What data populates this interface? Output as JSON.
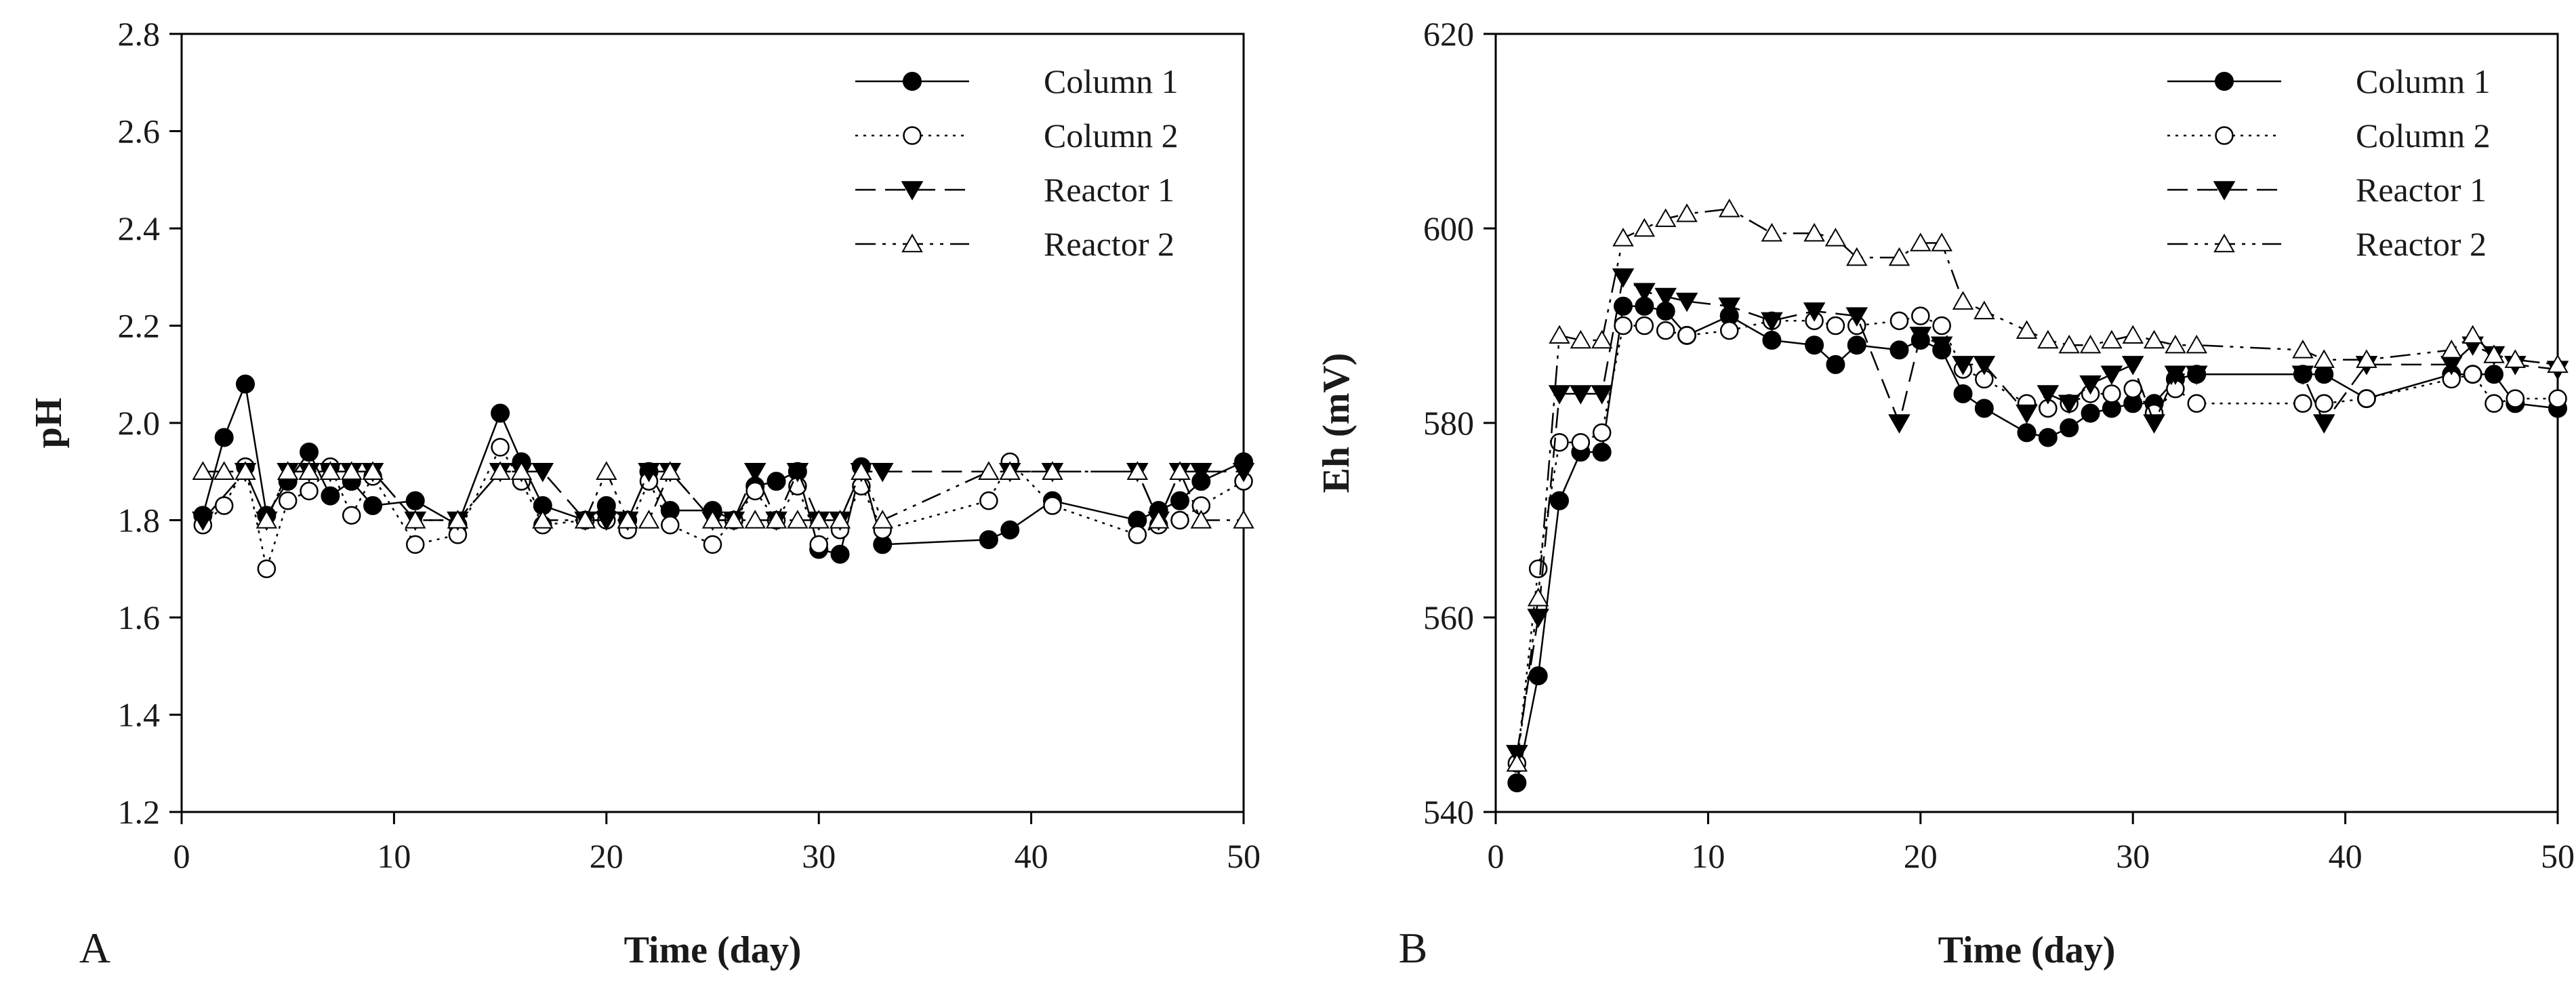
{
  "chart_data": [
    {
      "type": "line",
      "panel_label": "A",
      "xlabel": "Time (day)",
      "ylabel": "pH",
      "xlim": [
        0,
        50
      ],
      "ylim": [
        1.2,
        2.8
      ],
      "xticks": [
        0,
        10,
        20,
        30,
        40,
        50
      ],
      "xtick_labels": [
        "0",
        "10",
        "20",
        "30",
        "40",
        "50"
      ],
      "yticks": [
        1.2,
        1.4,
        1.6,
        1.8,
        2.0,
        2.2,
        2.4,
        2.6,
        2.8
      ],
      "ytick_labels": [
        "1.2",
        "1.4",
        "1.6",
        "1.8",
        "2.0",
        "2.2",
        "2.4",
        "2.6",
        "2.8"
      ],
      "grid": false,
      "legend_position": "top-right",
      "series": [
        {
          "name": "Column 1",
          "marker": "filled-circle",
          "linestyle": "solid",
          "x": [
            1,
            2,
            3,
            4,
            5,
            6,
            7,
            8,
            9,
            11,
            13,
            15,
            16,
            17,
            19,
            20,
            21,
            22,
            23,
            25,
            26,
            27,
            28,
            29,
            30,
            31,
            32,
            33,
            38,
            39,
            41,
            45,
            46,
            47,
            48,
            50
          ],
          "y": [
            1.81,
            1.97,
            2.08,
            1.81,
            1.88,
            1.94,
            1.85,
            1.88,
            1.83,
            1.84,
            1.79,
            2.02,
            1.92,
            1.83,
            1.8,
            1.83,
            1.8,
            1.9,
            1.82,
            1.82,
            1.8,
            1.87,
            1.88,
            1.9,
            1.74,
            1.73,
            1.91,
            1.75,
            1.76,
            1.78,
            1.84,
            1.8,
            1.82,
            1.84,
            1.88,
            1.92
          ]
        },
        {
          "name": "Column 2",
          "marker": "open-circle",
          "linestyle": "dotted",
          "x": [
            1,
            2,
            3,
            4,
            5,
            6,
            7,
            8,
            9,
            11,
            13,
            15,
            16,
            17,
            19,
            20,
            21,
            22,
            23,
            25,
            26,
            27,
            28,
            29,
            30,
            31,
            32,
            33,
            38,
            39,
            41,
            45,
            46,
            47,
            48,
            50
          ],
          "y": [
            1.79,
            1.83,
            1.91,
            1.7,
            1.84,
            1.86,
            1.91,
            1.81,
            1.89,
            1.75,
            1.77,
            1.95,
            1.88,
            1.79,
            1.8,
            1.8,
            1.78,
            1.88,
            1.79,
            1.75,
            1.8,
            1.86,
            1.8,
            1.87,
            1.75,
            1.78,
            1.87,
            1.78,
            1.84,
            1.92,
            1.83,
            1.77,
            1.79,
            1.8,
            1.83,
            1.88
          ]
        },
        {
          "name": "Reactor 1",
          "marker": "filled-triangle-down",
          "linestyle": "dashed",
          "x": [
            1,
            3,
            4,
            5,
            6,
            7,
            8,
            9,
            11,
            13,
            15,
            16,
            17,
            19,
            20,
            21,
            22,
            23,
            25,
            26,
            27,
            28,
            29,
            30,
            31,
            32,
            33,
            39,
            41,
            45,
            46,
            47,
            48,
            50
          ],
          "y": [
            1.8,
            1.9,
            1.8,
            1.9,
            1.9,
            1.9,
            1.9,
            1.9,
            1.8,
            1.8,
            1.9,
            1.9,
            1.9,
            1.8,
            1.8,
            1.8,
            1.9,
            1.9,
            1.8,
            1.8,
            1.9,
            1.8,
            1.9,
            1.8,
            1.8,
            1.9,
            1.9,
            1.9,
            1.9,
            1.9,
            1.8,
            1.9,
            1.9,
            1.9
          ]
        },
        {
          "name": "Reactor 2",
          "marker": "open-triangle-up",
          "linestyle": "dash-dot-dot",
          "x": [
            1,
            2,
            3,
            4,
            5,
            6,
            7,
            8,
            9,
            11,
            13,
            15,
            16,
            17,
            19,
            20,
            21,
            22,
            23,
            25,
            26,
            27,
            28,
            29,
            30,
            31,
            32,
            33,
            38,
            39,
            41,
            45,
            46,
            47,
            48,
            50
          ],
          "y": [
            1.9,
            1.9,
            1.9,
            1.8,
            1.9,
            1.9,
            1.9,
            1.9,
            1.9,
            1.8,
            1.8,
            1.9,
            1.9,
            1.8,
            1.8,
            1.9,
            1.8,
            1.8,
            1.9,
            1.8,
            1.8,
            1.8,
            1.8,
            1.8,
            1.8,
            1.8,
            1.9,
            1.8,
            1.9,
            1.9,
            1.9,
            1.9,
            1.8,
            1.9,
            1.8,
            1.8
          ]
        }
      ]
    },
    {
      "type": "line",
      "panel_label": "B",
      "xlabel": "Time (day)",
      "ylabel": "Eh (mV)",
      "xlim": [
        0,
        50
      ],
      "ylim": [
        540,
        620
      ],
      "xticks": [
        0,
        10,
        20,
        30,
        40,
        50
      ],
      "xtick_labels": [
        "0",
        "10",
        "20",
        "30",
        "40",
        "50"
      ],
      "yticks": [
        540,
        560,
        580,
        600,
        620
      ],
      "ytick_labels": [
        "540",
        "560",
        "580",
        "600",
        "620"
      ],
      "grid": false,
      "legend_position": "top-right",
      "series": [
        {
          "name": "Column 1",
          "marker": "filled-circle",
          "linestyle": "solid",
          "x": [
            1,
            2,
            3,
            4,
            5,
            6,
            7,
            8,
            9,
            11,
            13,
            15,
            16,
            17,
            19,
            20,
            21,
            22,
            23,
            25,
            26,
            27,
            28,
            29,
            30,
            31,
            32,
            33,
            38,
            39,
            41,
            45,
            46,
            47,
            48,
            50
          ],
          "y": [
            543,
            554,
            572,
            577,
            577,
            592,
            592,
            591.5,
            589,
            591,
            588.5,
            588,
            586,
            588,
            587.5,
            588.5,
            587.5,
            583,
            581.5,
            579,
            578.5,
            579.5,
            581,
            581.5,
            582,
            582,
            584.5,
            585,
            585,
            585,
            582.5,
            585,
            585,
            585,
            582,
            581.5
          ]
        },
        {
          "name": "Column 2",
          "marker": "open-circle",
          "linestyle": "dotted",
          "x": [
            1,
            2,
            3,
            4,
            5,
            6,
            7,
            8,
            9,
            11,
            13,
            15,
            16,
            17,
            19,
            20,
            21,
            22,
            23,
            25,
            26,
            27,
            28,
            29,
            30,
            31,
            32,
            33,
            38,
            39,
            41,
            45,
            46,
            47,
            48,
            50
          ],
          "y": [
            545,
            565,
            578,
            578,
            579,
            590,
            590,
            589.5,
            589,
            589.5,
            590.5,
            590.5,
            590,
            590,
            590.5,
            591,
            590,
            585.5,
            584.5,
            582,
            581.5,
            582,
            583,
            583,
            583.5,
            581,
            583.5,
            582,
            582,
            582,
            582.5,
            584.5,
            585,
            582,
            582.5,
            582.5
          ]
        },
        {
          "name": "Reactor 1",
          "marker": "filled-triangle-down",
          "linestyle": "dashed",
          "x": [
            1,
            2,
            3,
            4,
            5,
            6,
            7,
            8,
            9,
            11,
            13,
            15,
            17,
            19,
            20,
            21,
            22,
            23,
            25,
            26,
            27,
            28,
            29,
            30,
            31,
            32,
            33,
            38,
            39,
            41,
            45,
            46,
            47,
            48,
            50
          ],
          "y": [
            546,
            560,
            583,
            583,
            583,
            595,
            593.5,
            593,
            592.5,
            592,
            590.5,
            591.5,
            591,
            580,
            589,
            588,
            586,
            586,
            581,
            583,
            582,
            584,
            585,
            586,
            580,
            585,
            585,
            585,
            580,
            586,
            586,
            588,
            587,
            586,
            585.5
          ]
        },
        {
          "name": "Reactor 2",
          "marker": "open-triangle-up",
          "linestyle": "dash-dot-dot",
          "x": [
            1,
            2,
            3,
            4,
            5,
            6,
            7,
            8,
            9,
            11,
            13,
            15,
            16,
            17,
            19,
            20,
            21,
            22,
            23,
            25,
            26,
            27,
            28,
            29,
            30,
            31,
            32,
            33,
            38,
            39,
            41,
            45,
            46,
            47,
            48,
            50
          ],
          "y": [
            545,
            562,
            589,
            588.5,
            588.5,
            599,
            600,
            601,
            601.5,
            602,
            599.5,
            599.5,
            599,
            597,
            597,
            598.5,
            598.5,
            592.5,
            591.5,
            589.5,
            588.5,
            588,
            588,
            588.5,
            589,
            588.5,
            588,
            588,
            587.5,
            586.5,
            586.5,
            587.5,
            589,
            587,
            586.5,
            586
          ]
        }
      ]
    }
  ]
}
